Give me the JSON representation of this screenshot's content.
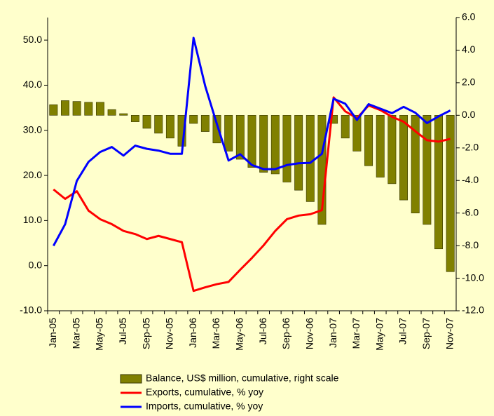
{
  "chart_data": {
    "type": "bar-line",
    "categories": [
      "Jan-05",
      null,
      "Mar-05",
      null,
      "May-05",
      null,
      "Jul-05",
      null,
      "Sep-05",
      null,
      "Nov-05",
      null,
      "Jan-06",
      null,
      "Mar-06",
      null,
      "May-06",
      null,
      "Jul-06",
      null,
      "Sep-06",
      null,
      "Nov-06",
      null,
      "Jan-07",
      null,
      "Mar-07",
      null,
      "May-07",
      null,
      "Jul-07",
      null,
      "Sep-07",
      null,
      "Nov-07"
    ],
    "series": [
      {
        "name": "Balance, US$ million, cumulative, right scale",
        "color": "#808000",
        "kind": "bar",
        "axis": "y2",
        "values": [
          0.65,
          0.9,
          0.85,
          0.8,
          0.8,
          0.35,
          0.1,
          -0.4,
          -0.8,
          -1.1,
          -1.4,
          -1.9,
          -0.5,
          -1.0,
          -1.7,
          -2.2,
          -2.7,
          -3.2,
          -3.5,
          -3.6,
          -4.1,
          -4.6,
          -5.3,
          -6.7,
          -0.5,
          -1.4,
          -2.2,
          -3.1,
          -3.8,
          -4.2,
          -5.2,
          -6.0,
          -6.7,
          -8.2,
          -9.6
        ]
      },
      {
        "name": "Exports, cumulative, % yoy",
        "color": "#ff0000",
        "kind": "line",
        "values": [
          16.9,
          14.8,
          16.5,
          12.2,
          10.3,
          9.2,
          7.7,
          7.0,
          5.9,
          6.6,
          5.9,
          5.2,
          -5.6,
          -4.8,
          -4.1,
          -3.6,
          -0.9,
          1.7,
          4.5,
          7.7,
          10.3,
          11.1,
          11.4,
          12.3,
          37.3,
          34.2,
          32.7,
          35.5,
          34.5,
          33.0,
          31.9,
          29.8,
          27.8,
          27.5,
          28.1
        ]
      },
      {
        "name": "Imports, cumulative, % yoy",
        "color": "#0000ff",
        "kind": "line",
        "values": [
          4.4,
          9.2,
          18.8,
          23.0,
          25.2,
          26.3,
          24.4,
          26.6,
          25.9,
          25.5,
          24.8,
          24.8,
          50.5,
          39.8,
          31.4,
          23.3,
          24.7,
          22.3,
          21.4,
          21.4,
          22.3,
          22.7,
          22.8,
          24.8,
          37.0,
          35.9,
          32.3,
          35.8,
          34.8,
          33.8,
          35.2,
          33.9,
          31.6,
          33.1,
          34.4
        ]
      }
    ],
    "ylim": [
      -10,
      55
    ],
    "yticks": [
      {
        "value": -10,
        "label": "-10.0"
      },
      {
        "value": 0,
        "label": "0.0"
      },
      {
        "value": 10,
        "label": "10.0"
      },
      {
        "value": 20,
        "label": "20.0"
      },
      {
        "value": 30,
        "label": "30.0"
      },
      {
        "value": 40,
        "label": "40.0"
      },
      {
        "value": 50,
        "label": "50.0"
      }
    ],
    "y2lim": [
      -12,
      6
    ],
    "y2ticks": [
      {
        "value": -12,
        "label": "-12.0"
      },
      {
        "value": -10,
        "label": "-10.0"
      },
      {
        "value": -8,
        "label": "-8.0"
      },
      {
        "value": -6,
        "label": "-6.0"
      },
      {
        "value": -4,
        "label": "-4.0"
      },
      {
        "value": -2,
        "label": "-2.0"
      },
      {
        "value": 0,
        "label": "0.0"
      },
      {
        "value": 2,
        "label": "2.0"
      },
      {
        "value": 4,
        "label": "4.0"
      },
      {
        "value": 6,
        "label": "6.0"
      }
    ],
    "legend": "bottom",
    "background": "#ffffcc"
  }
}
